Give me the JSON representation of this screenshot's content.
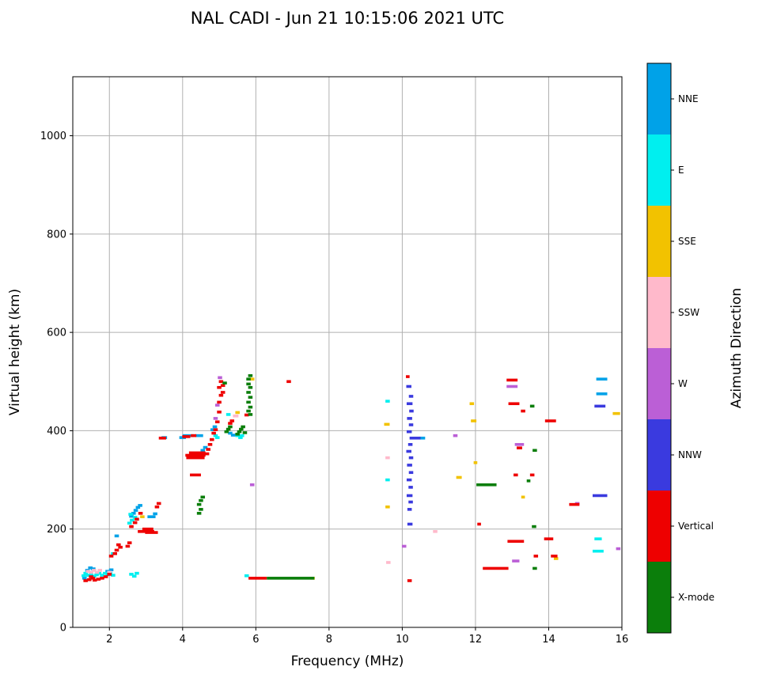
{
  "page": {
    "title": "NAL CADI - Jun 21 10:15:06 2021 UTC"
  },
  "chart_data": {
    "type": "scatter",
    "title": "NAL CADI - Jun 21 10:15:06 2021 UTC",
    "xlabel": "Frequency (MHz)",
    "ylabel": "Virtual height (km)",
    "xlim": [
      1,
      16
    ],
    "ylim": [
      0,
      1120
    ],
    "xticks": [
      2,
      4,
      6,
      8,
      10,
      12,
      14,
      16
    ],
    "yticks": [
      0,
      200,
      400,
      600,
      800,
      1000
    ],
    "grid": true,
    "grid_color": "#b0b0b0",
    "background": "#ffffff",
    "colorbar": {
      "label": "Azimuth Direction",
      "position": "right",
      "categories_top_to_bottom": [
        {
          "label": "NNE",
          "color": "#00A2E8"
        },
        {
          "label": "E",
          "color": "#00EFEF"
        },
        {
          "label": "SSE",
          "color": "#F2C200"
        },
        {
          "label": "SSW",
          "color": "#FFB9CB"
        },
        {
          "label": "W",
          "color": "#BB5FD6"
        },
        {
          "label": "NNW",
          "color": "#3A3ADF"
        },
        {
          "label": "Vertical",
          "color": "#EE0000"
        },
        {
          "label": "X-mode",
          "color": "#0B7E0B"
        }
      ]
    },
    "series": [
      {
        "name": "NNE",
        "points": [
          [
            1.32,
            100
          ],
          [
            1.4,
            116
          ],
          [
            1.48,
            121
          ],
          [
            1.56,
            119
          ],
          [
            1.95,
            114
          ],
          [
            2.05,
            117
          ],
          [
            2.2,
            186
          ],
          [
            2.6,
            226
          ],
          [
            2.66,
            232
          ],
          [
            2.72,
            238
          ],
          [
            2.78,
            244
          ],
          [
            2.84,
            248
          ],
          [
            3.15,
            225,
            0.22
          ],
          [
            3.25,
            231
          ],
          [
            3.5,
            386,
            0.15
          ],
          [
            4.0,
            386,
            0.18
          ],
          [
            4.15,
            390,
            0.3
          ],
          [
            4.45,
            390,
            0.22
          ],
          [
            4.55,
            360
          ],
          [
            4.62,
            366
          ],
          [
            4.82,
            402
          ],
          [
            4.88,
            408
          ],
          [
            5.3,
            395
          ],
          [
            5.38,
            391
          ],
          [
            10.55,
            385,
            0.15
          ],
          [
            15.45,
            505,
            0.3
          ],
          [
            15.45,
            475,
            0.3
          ]
        ]
      },
      {
        "name": "E",
        "points": [
          [
            1.3,
            105
          ],
          [
            1.35,
            110
          ],
          [
            1.42,
            106
          ],
          [
            1.5,
            108
          ],
          [
            1.58,
            104
          ],
          [
            1.65,
            107
          ],
          [
            1.72,
            110
          ],
          [
            1.8,
            106
          ],
          [
            1.88,
            110
          ],
          [
            1.95,
            107
          ],
          [
            2.02,
            110
          ],
          [
            2.1,
            106
          ],
          [
            2.1,
            150
          ],
          [
            2.55,
            212
          ],
          [
            2.62,
            218
          ],
          [
            2.7,
            224
          ],
          [
            2.58,
            230
          ],
          [
            2.6,
            108
          ],
          [
            2.68,
            104
          ],
          [
            2.75,
            110
          ],
          [
            4.9,
            390
          ],
          [
            4.95,
            386
          ],
          [
            5.25,
            433
          ],
          [
            5.5,
            390
          ],
          [
            5.58,
            386
          ],
          [
            5.62,
            390
          ],
          [
            5.75,
            105
          ],
          [
            9.6,
            300
          ],
          [
            9.6,
            460
          ],
          [
            15.35,
            180,
            0.2
          ],
          [
            15.35,
            155,
            0.3
          ]
        ]
      },
      {
        "name": "SSE",
        "points": [
          [
            2.9,
            225
          ],
          [
            5.5,
            437,
            0.12
          ],
          [
            5.9,
            505
          ],
          [
            7.55,
            100
          ],
          [
            9.58,
            413,
            0.15
          ],
          [
            9.6,
            245
          ],
          [
            11.55,
            305,
            0.15
          ],
          [
            11.9,
            455,
            0.12
          ],
          [
            11.95,
            420,
            0.15
          ],
          [
            12.0,
            335,
            0.1
          ],
          [
            13.3,
            265,
            0.1
          ],
          [
            14.2,
            140
          ],
          [
            15.85,
            435,
            0.2
          ]
        ]
      },
      {
        "name": "SSW",
        "points": [
          [
            1.42,
            114
          ],
          [
            1.5,
            112
          ],
          [
            1.58,
            116
          ],
          [
            1.66,
            112
          ],
          [
            1.74,
            116
          ],
          [
            2.0,
            112
          ],
          [
            5.45,
            430,
            0.15
          ],
          [
            9.6,
            345
          ],
          [
            9.62,
            132
          ],
          [
            10.9,
            195
          ]
        ]
      },
      {
        "name": "W",
        "points": [
          [
            4.9,
            425
          ],
          [
            4.95,
            452
          ],
          [
            5.02,
            508
          ],
          [
            5.9,
            290
          ],
          [
            10.05,
            165
          ],
          [
            11.45,
            390
          ],
          [
            13.0,
            490,
            0.3
          ],
          [
            13.2,
            372,
            0.25
          ],
          [
            13.1,
            135,
            0.2
          ],
          [
            14.78,
            252,
            0.12
          ],
          [
            15.9,
            160
          ]
        ]
      },
      {
        "name": "NNW",
        "points": [
          [
            10.18,
            490,
            0.14
          ],
          [
            10.24,
            470,
            0.12
          ],
          [
            10.2,
            455,
            0.16
          ],
          [
            10.25,
            440,
            0.12
          ],
          [
            10.2,
            425,
            0.14
          ],
          [
            10.24,
            412,
            0.12
          ],
          [
            10.19,
            398,
            0.14
          ],
          [
            10.35,
            385,
            0.3
          ],
          [
            10.22,
            372,
            0.12
          ],
          [
            10.18,
            358,
            0.14
          ],
          [
            10.24,
            345,
            0.12
          ],
          [
            10.2,
            330,
            0.14
          ],
          [
            10.24,
            315,
            0.12
          ],
          [
            10.19,
            300,
            0.14
          ],
          [
            10.23,
            285,
            0.12
          ],
          [
            10.2,
            268,
            0.16
          ],
          [
            10.23,
            255,
            0.12
          ],
          [
            10.2,
            240,
            0.12
          ],
          [
            10.21,
            210,
            0.14
          ],
          [
            15.4,
            450,
            0.3
          ],
          [
            15.4,
            268,
            0.4
          ]
        ]
      },
      {
        "name": "Vertical",
        "points": [
          [
            1.35,
            95
          ],
          [
            1.45,
            97
          ],
          [
            1.5,
            103
          ],
          [
            1.55,
            100
          ],
          [
            1.6,
            96
          ],
          [
            1.7,
            98
          ],
          [
            1.8,
            100
          ],
          [
            1.9,
            103
          ],
          [
            2.0,
            108
          ],
          [
            2.05,
            145
          ],
          [
            2.15,
            150
          ],
          [
            2.2,
            157
          ],
          [
            2.3,
            163
          ],
          [
            2.25,
            168
          ],
          [
            2.5,
            165
          ],
          [
            2.55,
            172
          ],
          [
            2.6,
            205
          ],
          [
            2.7,
            213
          ],
          [
            2.75,
            220
          ],
          [
            2.85,
            232
          ],
          [
            3.0,
            195,
            0.45
          ],
          [
            3.05,
            200,
            0.3
          ],
          [
            3.15,
            193,
            0.35
          ],
          [
            3.3,
            245
          ],
          [
            3.35,
            252
          ],
          [
            3.45,
            385,
            0.2
          ],
          [
            4.1,
            388,
            0.22
          ],
          [
            4.3,
            390,
            0.15
          ],
          [
            4.35,
            310,
            0.3
          ],
          [
            4.35,
            345,
            0.5
          ],
          [
            4.35,
            350,
            0.55
          ],
          [
            4.4,
            355,
            0.45
          ],
          [
            4.6,
            353,
            0.25
          ],
          [
            4.7,
            362
          ],
          [
            4.75,
            372
          ],
          [
            4.8,
            382
          ],
          [
            4.85,
            395
          ],
          [
            4.9,
            402
          ],
          [
            4.95,
            418
          ],
          [
            5.0,
            438
          ],
          [
            5.0,
            458
          ],
          [
            5.0,
            488
          ],
          [
            5.05,
            472
          ],
          [
            5.05,
            500
          ],
          [
            5.1,
            478
          ],
          [
            5.1,
            492
          ],
          [
            5.3,
            415
          ],
          [
            5.35,
            420
          ],
          [
            5.75,
            432,
            0.12
          ],
          [
            6.05,
            100,
            0.5
          ],
          [
            6.9,
            500
          ],
          [
            10.15,
            510,
            0.1
          ],
          [
            10.2,
            95,
            0.12
          ],
          [
            12.1,
            210,
            0.1
          ],
          [
            12.55,
            120,
            0.7
          ],
          [
            13.0,
            503,
            0.3
          ],
          [
            13.05,
            455,
            0.3
          ],
          [
            13.3,
            440,
            0.12
          ],
          [
            13.2,
            365,
            0.15
          ],
          [
            13.1,
            310,
            0.12
          ],
          [
            13.55,
            310,
            0.12
          ],
          [
            13.1,
            175,
            0.45
          ],
          [
            13.65,
            145,
            0.12
          ],
          [
            14.0,
            180,
            0.25
          ],
          [
            14.05,
            420,
            0.3
          ],
          [
            14.15,
            145,
            0.18
          ],
          [
            14.7,
            250,
            0.28
          ]
        ]
      },
      {
        "name": "X-mode",
        "points": [
          [
            4.45,
            232
          ],
          [
            4.5,
            240
          ],
          [
            4.45,
            250
          ],
          [
            4.5,
            258
          ],
          [
            4.55,
            265
          ],
          [
            5.15,
            497
          ],
          [
            5.2,
            398
          ],
          [
            5.25,
            403
          ],
          [
            5.3,
            408
          ],
          [
            5.5,
            393
          ],
          [
            5.55,
            398
          ],
          [
            5.6,
            403
          ],
          [
            5.65,
            408
          ],
          [
            5.7,
            396
          ],
          [
            5.8,
            440
          ],
          [
            5.8,
            458
          ],
          [
            5.8,
            478
          ],
          [
            5.8,
            495
          ],
          [
            5.8,
            505,
            0.12
          ],
          [
            5.85,
            433
          ],
          [
            5.85,
            448
          ],
          [
            5.85,
            468
          ],
          [
            5.85,
            488
          ],
          [
            5.85,
            512
          ],
          [
            6.95,
            100,
            1.3
          ],
          [
            12.3,
            290,
            0.55
          ],
          [
            13.45,
            298,
            0.1
          ],
          [
            13.55,
            450,
            0.12
          ],
          [
            13.62,
            360,
            0.12
          ],
          [
            13.6,
            205
          ],
          [
            13.62,
            120
          ]
        ]
      }
    ]
  }
}
